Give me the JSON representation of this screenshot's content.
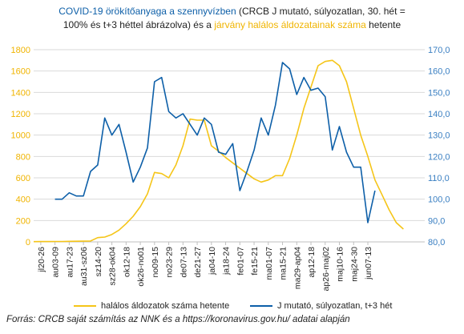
{
  "title": {
    "part1": "COVID-19 örökítőanyaga a szennyvízben",
    "part2": " (CRCB J mutató, súlyozatlan, 30. hét =",
    "line2a": "100% és t+3 héttel ábrázolva) és a ",
    "part3": "járvány halálos áldozatainak száma",
    "part4": " hetente"
  },
  "legend": {
    "deaths": "halálos áldozatok száma hetente",
    "jindex": "J mutató, súlyozatlan, t+3 hét"
  },
  "source": "Forrás: CRCB saját számítás az NNK és a https://koronavirus.gov.hu/ adatai alapján",
  "colors": {
    "deaths": "#f5c518",
    "jindex": "#0d5fa8",
    "grid": "#d9d9d9",
    "leftAxis": "#f0b400",
    "rightAxis": "#3a7fc2"
  },
  "chart_data": {
    "type": "line",
    "x_ticks": [
      "jl20-26",
      "au03-09",
      "au17-23",
      "au31-sz06",
      "sz14-20",
      "sz28-ok04",
      "ok12-18",
      "ok26-no01",
      "no09-15",
      "no23-29",
      "de07-13",
      "de21-27",
      "ja04-10",
      "ja18-24",
      "fe01-07",
      "fe15-21",
      "ma01-07",
      "ma15-21",
      "ma29-ap04",
      "ap12-18",
      "ap26-maj02",
      "maj10-16",
      "maj24-30",
      "jun07-13"
    ],
    "y_left": {
      "ylim": [
        0,
        1800
      ],
      "ticks": [
        "0",
        "200",
        "400",
        "600",
        "800",
        "1000",
        "1200",
        "1400",
        "1600",
        "1800"
      ]
    },
    "y_right": {
      "ylim": [
        80,
        170
      ],
      "ticks": [
        "80,0",
        "90,0",
        "100,0",
        "110,0",
        "120,0",
        "130,0",
        "140,0",
        "150,0",
        "160,0",
        "170,0"
      ]
    },
    "series": [
      {
        "name": "halálos áldozatok száma hetente",
        "axis": "left",
        "start_week": 0,
        "values": [
          2,
          3,
          3,
          4,
          4,
          5,
          6,
          7,
          8,
          40,
          45,
          70,
          110,
          170,
          240,
          330,
          450,
          650,
          640,
          600,
          720,
          900,
          1150,
          1140,
          1140,
          900,
          850,
          790,
          740,
          690,
          640,
          590,
          560,
          580,
          620,
          620,
          780,
          1000,
          1250,
          1450,
          1650,
          1690,
          1700,
          1650,
          1500,
          1250,
          1000,
          800,
          580,
          440,
          300,
          180,
          120
        ]
      },
      {
        "name": "J mutató, súlyozatlan, t+3 hét",
        "axis": "right",
        "start_week": 3,
        "values": [
          100,
          100,
          103,
          101.5,
          101.5,
          113,
          116,
          138,
          130,
          135,
          122,
          108,
          115,
          124,
          155,
          157,
          141,
          138,
          140,
          135,
          130,
          138,
          135,
          122,
          121,
          126,
          104,
          113,
          123,
          138,
          130,
          144,
          164,
          161,
          149,
          157,
          151,
          152,
          148,
          123,
          134,
          122,
          115,
          115,
          89,
          104
        ]
      }
    ]
  }
}
